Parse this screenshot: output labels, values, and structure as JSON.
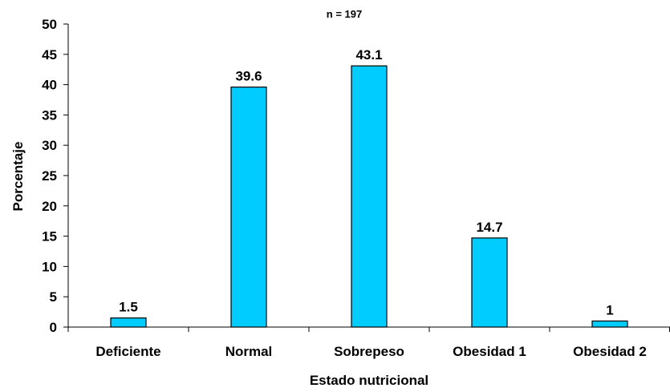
{
  "chart_data": {
    "type": "bar",
    "title": "n = 197",
    "xlabel": "Estado nutricional",
    "ylabel": "Porcentaje",
    "categories": [
      "Deficiente",
      "Normal",
      "Sobrepeso",
      "Obesidad 1",
      "Obesidad 2"
    ],
    "values": [
      1.5,
      39.6,
      43.1,
      14.7,
      1
    ],
    "value_labels": [
      "1.5",
      "39.6",
      "43.1",
      "14.7",
      "1"
    ],
    "ylim": [
      0,
      50
    ],
    "yticks": [
      0,
      5,
      10,
      15,
      20,
      25,
      30,
      35,
      40,
      45,
      50
    ],
    "grid": false,
    "legend": "none",
    "bar_color": "#00CCFF",
    "bar_edge_color": "#000000"
  }
}
